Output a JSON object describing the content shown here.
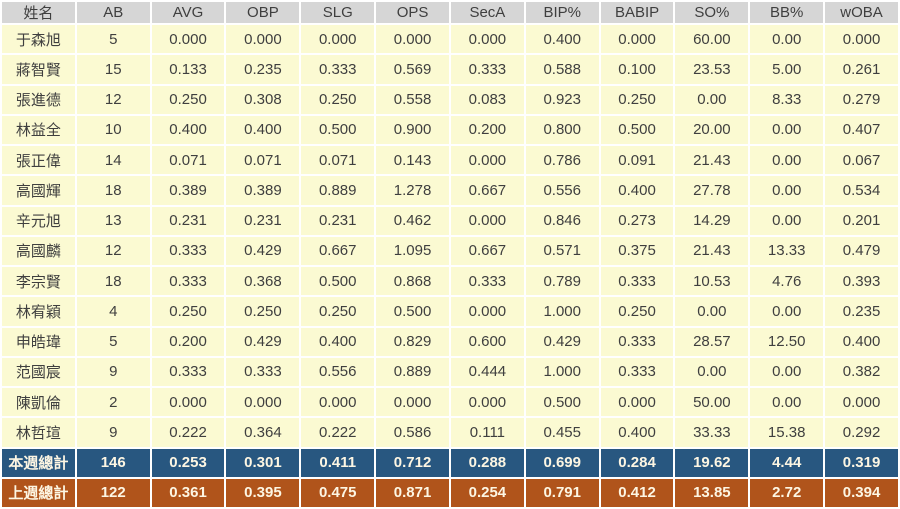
{
  "colors": {
    "header_bg": "#d6d6d6",
    "header_text": "#3f3f3f",
    "row_bg": "#fbfad2",
    "row_text": "#3f3f3f",
    "grid": "#ffffff",
    "total_week_bg": "#285780",
    "total_lastweek_bg": "#b0541b",
    "total_text": "#fdf6e3"
  },
  "chart_data": {
    "type": "table",
    "columns": [
      "姓名",
      "AB",
      "AVG",
      "OBP",
      "SLG",
      "OPS",
      "SecA",
      "BIP%",
      "BABIP",
      "SO%",
      "BB%",
      "wOBA"
    ],
    "rows": [
      [
        "于森旭",
        "5",
        "0.000",
        "0.000",
        "0.000",
        "0.000",
        "0.000",
        "0.400",
        "0.000",
        "60.00",
        "0.00",
        "0.000"
      ],
      [
        "蔣智賢",
        "15",
        "0.133",
        "0.235",
        "0.333",
        "0.569",
        "0.333",
        "0.588",
        "0.100",
        "23.53",
        "5.00",
        "0.261"
      ],
      [
        "張進德",
        "12",
        "0.250",
        "0.308",
        "0.250",
        "0.558",
        "0.083",
        "0.923",
        "0.250",
        "0.00",
        "8.33",
        "0.279"
      ],
      [
        "林益全",
        "10",
        "0.400",
        "0.400",
        "0.500",
        "0.900",
        "0.200",
        "0.800",
        "0.500",
        "20.00",
        "0.00",
        "0.407"
      ],
      [
        "張正偉",
        "14",
        "0.071",
        "0.071",
        "0.071",
        "0.143",
        "0.000",
        "0.786",
        "0.091",
        "21.43",
        "0.00",
        "0.067"
      ],
      [
        "高國輝",
        "18",
        "0.389",
        "0.389",
        "0.889",
        "1.278",
        "0.667",
        "0.556",
        "0.400",
        "27.78",
        "0.00",
        "0.534"
      ],
      [
        "辛元旭",
        "13",
        "0.231",
        "0.231",
        "0.231",
        "0.462",
        "0.000",
        "0.846",
        "0.273",
        "14.29",
        "0.00",
        "0.201"
      ],
      [
        "高國麟",
        "12",
        "0.333",
        "0.429",
        "0.667",
        "1.095",
        "0.667",
        "0.571",
        "0.375",
        "21.43",
        "13.33",
        "0.479"
      ],
      [
        "李宗賢",
        "18",
        "0.333",
        "0.368",
        "0.500",
        "0.868",
        "0.333",
        "0.789",
        "0.333",
        "10.53",
        "4.76",
        "0.393"
      ],
      [
        "林宥穎",
        "4",
        "0.250",
        "0.250",
        "0.250",
        "0.500",
        "0.000",
        "1.000",
        "0.250",
        "0.00",
        "0.00",
        "0.235"
      ],
      [
        "申皓瑋",
        "5",
        "0.200",
        "0.429",
        "0.400",
        "0.829",
        "0.600",
        "0.429",
        "0.333",
        "28.57",
        "12.50",
        "0.400"
      ],
      [
        "范國宸",
        "9",
        "0.333",
        "0.333",
        "0.556",
        "0.889",
        "0.444",
        "1.000",
        "0.333",
        "0.00",
        "0.00",
        "0.382"
      ],
      [
        "陳凱倫",
        "2",
        "0.000",
        "0.000",
        "0.000",
        "0.000",
        "0.000",
        "0.500",
        "0.000",
        "50.00",
        "0.00",
        "0.000"
      ],
      [
        "林哲瑄",
        "9",
        "0.222",
        "0.364",
        "0.222",
        "0.586",
        "0.111",
        "0.455",
        "0.400",
        "33.33",
        "15.38",
        "0.292"
      ]
    ],
    "total_rows": [
      {
        "label": "本週總計",
        "style": "total-this-week",
        "values": [
          "146",
          "0.253",
          "0.301",
          "0.411",
          "0.712",
          "0.288",
          "0.699",
          "0.284",
          "19.62",
          "4.44",
          "0.319"
        ]
      },
      {
        "label": "上週總計",
        "style": "total-last-week",
        "values": [
          "122",
          "0.361",
          "0.395",
          "0.475",
          "0.871",
          "0.254",
          "0.791",
          "0.412",
          "13.85",
          "2.72",
          "0.394"
        ]
      }
    ],
    "title": "",
    "grid": true,
    "legend": false
  }
}
